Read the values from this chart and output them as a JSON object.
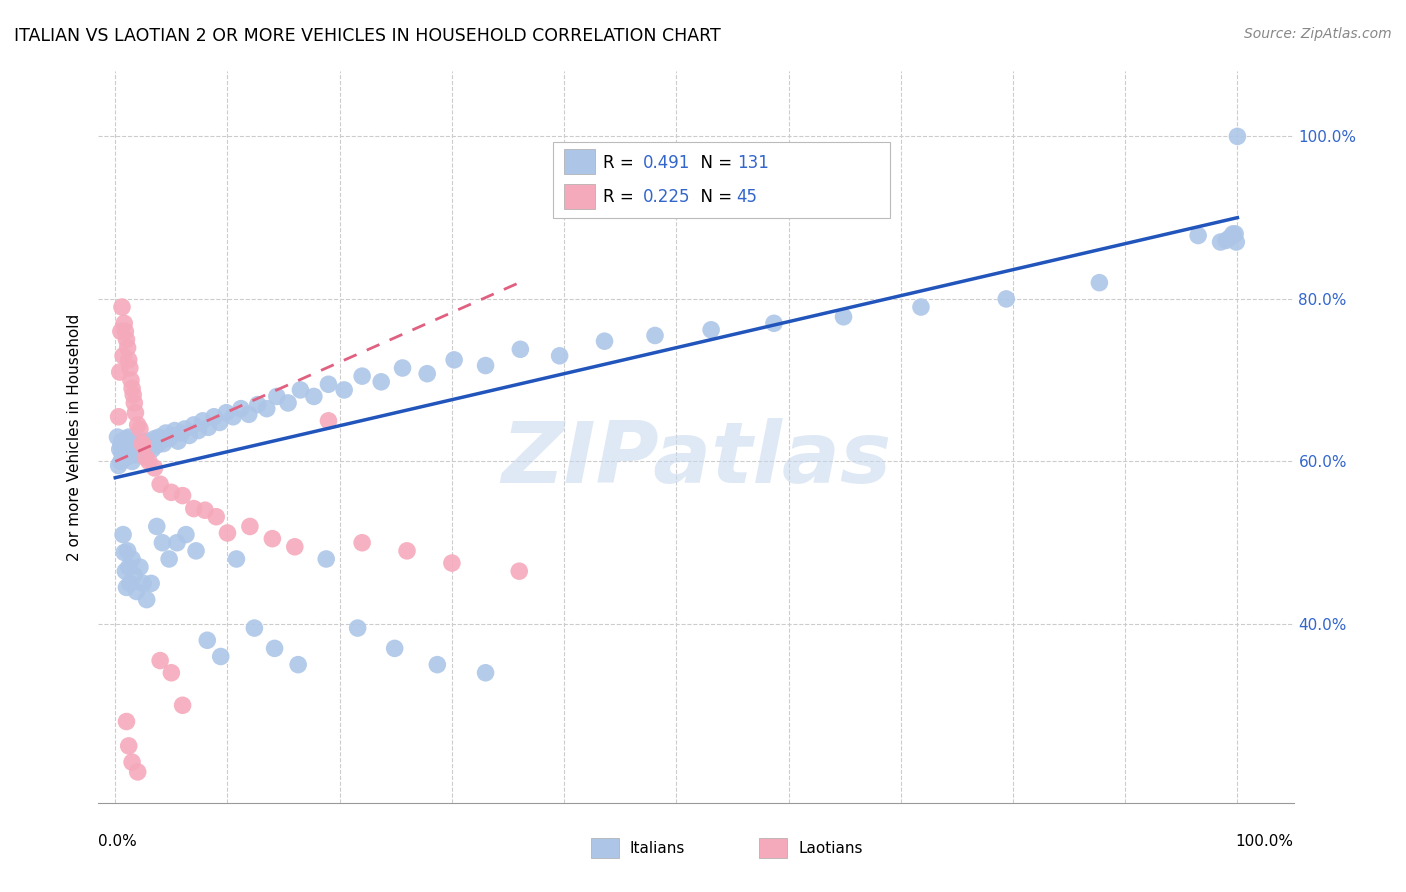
{
  "title": "ITALIAN VS LAOTIAN 2 OR MORE VEHICLES IN HOUSEHOLD CORRELATION CHART",
  "source": "Source: ZipAtlas.com",
  "ylabel": "2 or more Vehicles in Household",
  "italian_color": "#adc6e8",
  "laotian_color": "#f5aabc",
  "italian_line_color": "#2255bb",
  "laotian_line_color": "#e06080",
  "watermark": "ZIPatlas",
  "italian_x": [
    0.002,
    0.003,
    0.004,
    0.005,
    0.005,
    0.006,
    0.006,
    0.007,
    0.007,
    0.008,
    0.008,
    0.009,
    0.009,
    0.01,
    0.01,
    0.01,
    0.011,
    0.011,
    0.012,
    0.012,
    0.013,
    0.013,
    0.014,
    0.014,
    0.015,
    0.015,
    0.016,
    0.016,
    0.017,
    0.018,
    0.019,
    0.02,
    0.02,
    0.021,
    0.022,
    0.023,
    0.024,
    0.025,
    0.026,
    0.027,
    0.028,
    0.029,
    0.03,
    0.032,
    0.033,
    0.035,
    0.037,
    0.039,
    0.041,
    0.043,
    0.045,
    0.048,
    0.05,
    0.053,
    0.056,
    0.059,
    0.062,
    0.066,
    0.07,
    0.074,
    0.078,
    0.083,
    0.088,
    0.093,
    0.099,
    0.105,
    0.112,
    0.119,
    0.127,
    0.135,
    0.144,
    0.154,
    0.165,
    0.177,
    0.19,
    0.204,
    0.22,
    0.237,
    0.256,
    0.278,
    0.302,
    0.33,
    0.361,
    0.396,
    0.436,
    0.481,
    0.531,
    0.587,
    0.649,
    0.718,
    0.794,
    0.877,
    0.965,
    0.985,
    0.99,
    0.993,
    0.996,
    0.998,
    0.999,
    1.0,
    0.007,
    0.008,
    0.009,
    0.01,
    0.011,
    0.012,
    0.013,
    0.015,
    0.017,
    0.019,
    0.022,
    0.025,
    0.028,
    0.032,
    0.037,
    0.042,
    0.048,
    0.055,
    0.063,
    0.072,
    0.082,
    0.094,
    0.108,
    0.124,
    0.142,
    0.163,
    0.188,
    0.216,
    0.249,
    0.287,
    0.33
  ],
  "italian_y": [
    0.63,
    0.595,
    0.615,
    0.6,
    0.62,
    0.61,
    0.625,
    0.605,
    0.618,
    0.608,
    0.622,
    0.612,
    0.625,
    0.605,
    0.618,
    0.628,
    0.61,
    0.622,
    0.615,
    0.63,
    0.608,
    0.62,
    0.612,
    0.625,
    0.6,
    0.618,
    0.61,
    0.622,
    0.615,
    0.608,
    0.618,
    0.612,
    0.625,
    0.618,
    0.61,
    0.622,
    0.615,
    0.625,
    0.618,
    0.62,
    0.612,
    0.625,
    0.618,
    0.622,
    0.615,
    0.628,
    0.62,
    0.63,
    0.625,
    0.622,
    0.635,
    0.628,
    0.632,
    0.638,
    0.625,
    0.635,
    0.64,
    0.632,
    0.645,
    0.638,
    0.65,
    0.642,
    0.655,
    0.648,
    0.66,
    0.655,
    0.665,
    0.658,
    0.67,
    0.665,
    0.68,
    0.672,
    0.688,
    0.68,
    0.695,
    0.688,
    0.705,
    0.698,
    0.715,
    0.708,
    0.725,
    0.718,
    0.738,
    0.73,
    0.748,
    0.755,
    0.762,
    0.77,
    0.778,
    0.79,
    0.8,
    0.82,
    0.878,
    0.87,
    0.872,
    0.875,
    0.88,
    0.88,
    0.87,
    1.0,
    0.51,
    0.488,
    0.465,
    0.445,
    0.49,
    0.47,
    0.45,
    0.48,
    0.46,
    0.44,
    0.47,
    0.45,
    0.43,
    0.45,
    0.52,
    0.5,
    0.48,
    0.5,
    0.51,
    0.49,
    0.38,
    0.36,
    0.48,
    0.395,
    0.37,
    0.35,
    0.48,
    0.395,
    0.37,
    0.35,
    0.34
  ],
  "laotian_x": [
    0.003,
    0.004,
    0.005,
    0.006,
    0.007,
    0.008,
    0.009,
    0.01,
    0.011,
    0.012,
    0.013,
    0.014,
    0.015,
    0.016,
    0.017,
    0.018,
    0.02,
    0.022,
    0.024,
    0.027,
    0.03,
    0.035,
    0.04,
    0.05,
    0.06,
    0.07,
    0.08,
    0.09,
    0.1,
    0.12,
    0.14,
    0.16,
    0.19,
    0.22,
    0.26,
    0.3,
    0.36,
    0.04,
    0.05,
    0.06,
    0.01,
    0.012,
    0.015,
    0.02,
    0.025
  ],
  "laotian_y": [
    0.655,
    0.71,
    0.76,
    0.79,
    0.73,
    0.77,
    0.76,
    0.75,
    0.74,
    0.725,
    0.715,
    0.7,
    0.69,
    0.682,
    0.672,
    0.66,
    0.645,
    0.64,
    0.622,
    0.605,
    0.6,
    0.592,
    0.572,
    0.562,
    0.558,
    0.542,
    0.54,
    0.532,
    0.512,
    0.52,
    0.505,
    0.495,
    0.65,
    0.5,
    0.49,
    0.475,
    0.465,
    0.355,
    0.34,
    0.3,
    0.28,
    0.25,
    0.23,
    0.218,
    0.62
  ],
  "it_line_x0": 0.0,
  "it_line_x1": 1.0,
  "it_line_y0": 0.58,
  "it_line_y1": 0.9,
  "la_line_x0": 0.0,
  "la_line_x1": 0.36,
  "la_line_y0": 0.6,
  "la_line_y1": 0.82,
  "ymin": 0.18,
  "ymax": 1.08,
  "xmin": -0.015,
  "xmax": 1.05
}
